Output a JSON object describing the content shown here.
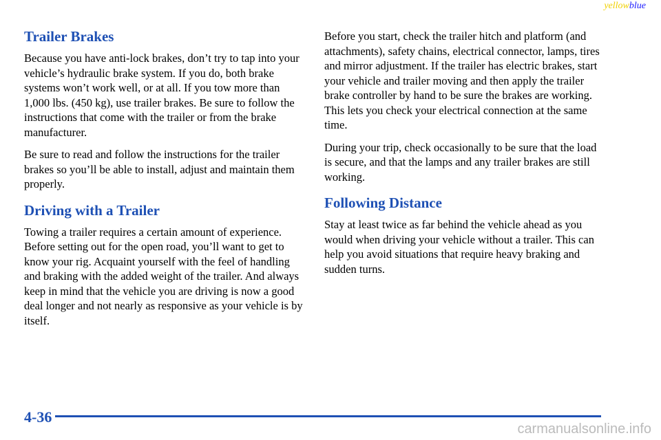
{
  "header": {
    "left": "yellow",
    "right": "blue"
  },
  "left_column": [
    {
      "heading": "Trailer Brakes",
      "paragraphs": [
        "Because you have anti-lock brakes, don’t try to tap into your vehicle’s hydraulic brake system. If you do, both brake systems won’t work well, or at all. If you tow more than 1,000 lbs. (450 kg), use trailer brakes. Be sure to follow the instructions that come with the trailer or from the brake manufacturer.",
        "Be sure to read and follow the instructions for the trailer brakes so you’ll be able to install, adjust and maintain them properly."
      ]
    },
    {
      "heading": "Driving with a Trailer",
      "paragraphs": [
        "Towing a trailer requires a certain amount of experience. Before setting out for the open road, you’ll want to get to know your rig. Acquaint yourself with the feel of handling and braking with the added weight of the trailer. And always keep in mind that the vehicle you are driving is now a good deal longer and not nearly as responsive as your vehicle is by itself."
      ]
    }
  ],
  "right_column": [
    {
      "heading": null,
      "paragraphs": [
        "Before you start, check the trailer hitch and platform (and attachments), safety chains, electrical connector, lamps, tires and mirror adjustment. If the trailer has electric brakes, start your vehicle and trailer moving and then apply the trailer brake controller by hand to be sure the brakes are working. This lets you check your electrical connection at the same time.",
        "During your trip, check occasionally to be sure that the load is secure, and that the lamps and any trailer brakes are still working."
      ]
    },
    {
      "heading": "Following Distance",
      "paragraphs": [
        "Stay at least twice as far behind the vehicle ahead as you would when driving your vehicle without a trailer. This can help you avoid situations that require heavy braking and sudden turns."
      ]
    }
  ],
  "page_number": "4-36",
  "watermark": "carmanualsonline.info"
}
